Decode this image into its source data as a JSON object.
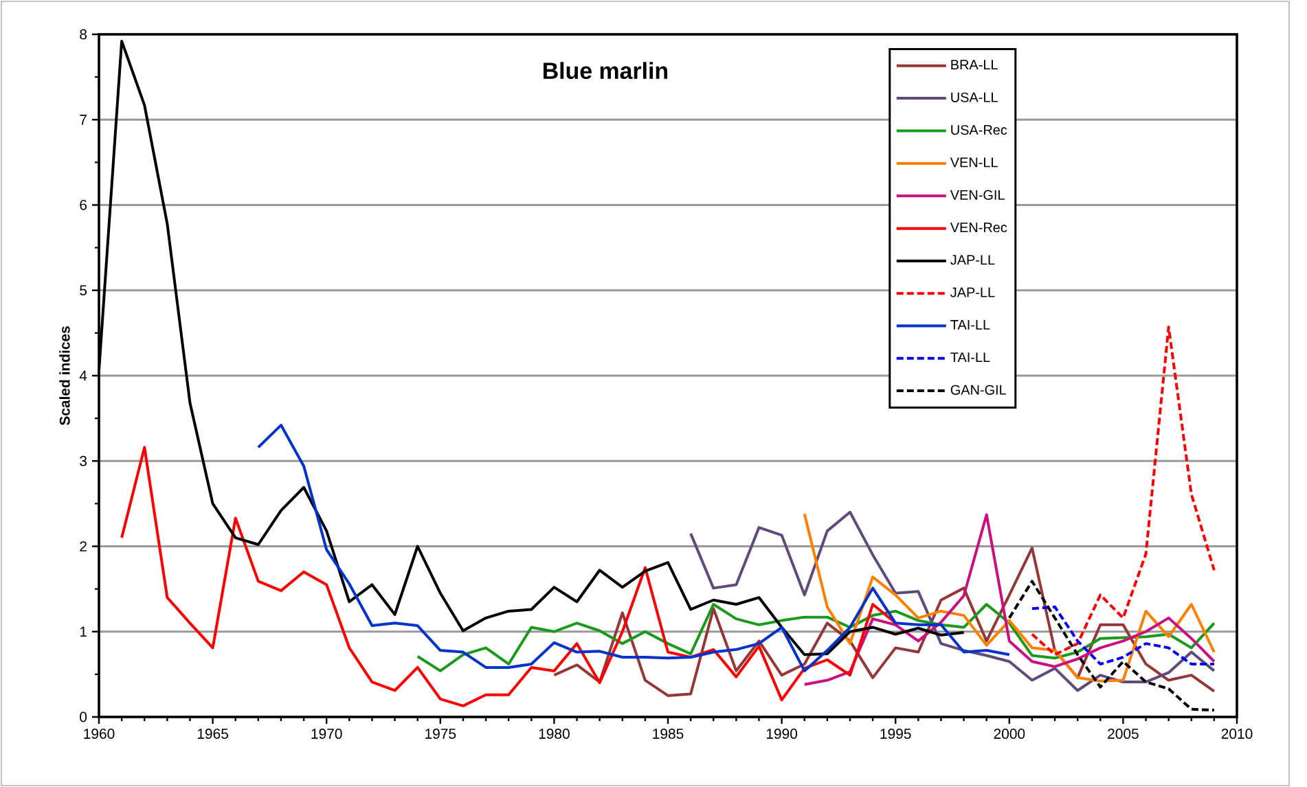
{
  "chart_data": {
    "type": "line",
    "title": "Blue marlin",
    "ylabel": "Scaled indices",
    "xlim": [
      1960,
      2010
    ],
    "ylim": [
      0,
      8
    ],
    "xticks": [
      1960,
      1965,
      1970,
      1975,
      1980,
      1985,
      1990,
      1995,
      2000,
      2005,
      2010
    ],
    "yticks": [
      0,
      1,
      2,
      3,
      4,
      5,
      6,
      7,
      8
    ],
    "grid": "y",
    "legend": "top right",
    "series": [
      {
        "name": "BRA-LL",
        "color": "#953735",
        "line_style": "solid",
        "x": [
          1980,
          1981,
          1982,
          1983,
          1984,
          1985,
          1986,
          1987,
          1988,
          1989,
          1990,
          1991,
          1992,
          1993,
          1994,
          1995,
          1996,
          1997,
          1998,
          1999,
          2000,
          2001,
          2002,
          2003,
          2004,
          2005,
          2006,
          2007,
          2008,
          2009
        ],
        "values": [
          0.49,
          0.61,
          0.41,
          1.22,
          0.43,
          0.25,
          0.27,
          1.27,
          0.54,
          0.89,
          0.49,
          0.62,
          1.1,
          0.89,
          0.46,
          0.81,
          0.76,
          1.37,
          1.51,
          0.89,
          1.43,
          1.98,
          0.78,
          0.46,
          1.08,
          1.08,
          0.62,
          0.43,
          0.49,
          0.3
        ]
      },
      {
        "name": "USA-LL",
        "color": "#604a7b",
        "line_style": "solid",
        "x": [
          1986,
          1987,
          1988,
          1989,
          1990,
          1991,
          1992,
          1993,
          1994,
          1995,
          1996,
          1997,
          1998,
          1999,
          2000,
          2001,
          2002,
          2003,
          2004,
          2005,
          2006,
          2007,
          2008,
          2009
        ],
        "values": [
          2.15,
          1.51,
          1.55,
          2.22,
          2.13,
          1.43,
          2.18,
          2.4,
          1.9,
          1.45,
          1.47,
          0.86,
          0.78,
          0.72,
          0.65,
          0.43,
          0.57,
          0.31,
          0.49,
          0.41,
          0.41,
          0.52,
          0.76,
          0.54
        ]
      },
      {
        "name": "USA-Rec",
        "color": "#1a9a1a",
        "line_style": "solid",
        "x": [
          1974,
          1975,
          1976,
          1977,
          1978,
          1979,
          1980,
          1981,
          1982,
          1983,
          1984,
          1985,
          1986,
          1987,
          1988,
          1989,
          1990,
          1991,
          1992,
          1993,
          1994,
          1995,
          1996,
          1997,
          1998,
          1999,
          2000,
          2001,
          2002,
          2003,
          2004,
          2005,
          2006,
          2007,
          2008,
          2009
        ],
        "values": [
          0.71,
          0.54,
          0.73,
          0.81,
          0.62,
          1.05,
          1.0,
          1.1,
          1.01,
          0.86,
          1.0,
          0.86,
          0.74,
          1.32,
          1.15,
          1.08,
          1.13,
          1.17,
          1.17,
          1.05,
          1.19,
          1.24,
          1.13,
          1.08,
          1.05,
          1.32,
          1.1,
          0.72,
          0.69,
          0.76,
          0.92,
          0.93,
          0.94,
          0.97,
          0.81,
          1.1
        ]
      },
      {
        "name": "VEN-LL",
        "color": "#ff7f00",
        "line_style": "solid",
        "x": [
          1991,
          1992,
          1993,
          1994,
          1995,
          1996,
          1997,
          1998,
          1999,
          2000,
          2001,
          2002,
          2003,
          2004,
          2005,
          2006,
          2007,
          2008,
          2009
        ],
        "values": [
          2.38,
          1.29,
          0.86,
          1.64,
          1.43,
          1.16,
          1.24,
          1.19,
          0.84,
          1.13,
          0.81,
          0.78,
          0.46,
          0.42,
          0.43,
          1.24,
          0.94,
          1.32,
          0.76
        ]
      },
      {
        "name": "VEN-GIL",
        "color": "#cc0f80",
        "line_style": "solid",
        "x": [
          1991,
          1992,
          1993,
          1994,
          1995,
          1996,
          1997,
          1998,
          1999,
          2000,
          2001,
          2002,
          2003,
          2004,
          2005,
          2006,
          2007,
          2008,
          2009
        ],
        "values": [
          0.38,
          0.43,
          0.53,
          1.15,
          1.08,
          0.89,
          1.11,
          1.42,
          2.37,
          0.89,
          0.65,
          0.59,
          0.68,
          0.81,
          0.89,
          1.0,
          1.16,
          0.92,
          0.65
        ]
      },
      {
        "name": "VEN-Rec",
        "color": "#ff0000",
        "line_style": "solid",
        "x": [
          1961,
          1962,
          1963,
          1964,
          1965,
          1966,
          1967,
          1968,
          1969,
          1970,
          1971,
          1972,
          1973,
          1974,
          1975,
          1976,
          1977,
          1978,
          1979,
          1980,
          1981,
          1982,
          1983,
          1984,
          1985,
          1986,
          1987,
          1988,
          1989,
          1990,
          1991,
          1992,
          1993,
          1994,
          1995
        ],
        "values": [
          2.1,
          3.16,
          1.4,
          1.1,
          0.81,
          2.33,
          1.59,
          1.48,
          1.7,
          1.55,
          0.81,
          0.41,
          0.31,
          0.58,
          0.21,
          0.13,
          0.26,
          0.26,
          0.58,
          0.54,
          0.86,
          0.4,
          1.0,
          1.75,
          0.76,
          0.7,
          0.79,
          0.47,
          0.83,
          0.2,
          0.57,
          0.67,
          0.49,
          1.32,
          1.1
        ]
      },
      {
        "name": "JAP-LL",
        "color": "#000000",
        "line_style": "solid",
        "x": [
          1960,
          1961,
          1962,
          1963,
          1964,
          1965,
          1966,
          1967,
          1968,
          1969,
          1970,
          1971,
          1972,
          1973,
          1974,
          1975,
          1976,
          1977,
          1978,
          1979,
          1980,
          1981,
          1982,
          1983,
          1984,
          1985,
          1986,
          1987,
          1988,
          1989,
          1990,
          1991,
          1992,
          1993,
          1994,
          1995,
          1996,
          1997,
          1998
        ],
        "values": [
          4.06,
          7.92,
          7.17,
          5.78,
          3.68,
          2.5,
          2.1,
          2.02,
          2.42,
          2.69,
          2.18,
          1.35,
          1.55,
          1.2,
          2.0,
          1.45,
          1.01,
          1.16,
          1.24,
          1.26,
          1.52,
          1.35,
          1.72,
          1.52,
          1.71,
          1.81,
          1.26,
          1.37,
          1.32,
          1.4,
          1.05,
          0.73,
          0.74,
          1.0,
          1.05,
          0.97,
          1.04,
          0.96,
          0.99
        ]
      },
      {
        "name": "JAP-LL",
        "color": "#ff0000",
        "line_style": "dashed",
        "x": [
          2001,
          2002,
          2003,
          2004,
          2005,
          2006,
          2007,
          2008,
          2009
        ],
        "values": [
          0.97,
          0.73,
          0.86,
          1.43,
          1.16,
          1.91,
          4.57,
          2.61,
          1.72
        ]
      },
      {
        "name": "TAI-LL",
        "color": "#0033cc",
        "line_style": "solid",
        "x": [
          1967,
          1968,
          1969,
          1970,
          1971,
          1972,
          1973,
          1974,
          1975,
          1976,
          1977,
          1978,
          1979,
          1980,
          1981,
          1982,
          1983,
          1984,
          1985,
          1986,
          1987,
          1988,
          1989,
          1990,
          1991,
          1992,
          1993,
          1994,
          1995,
          1996,
          1997,
          1998,
          1999,
          2000
        ],
        "values": [
          3.16,
          3.42,
          2.94,
          1.96,
          1.56,
          1.07,
          1.1,
          1.07,
          0.78,
          0.76,
          0.58,
          0.58,
          0.62,
          0.87,
          0.76,
          0.77,
          0.7,
          0.7,
          0.69,
          0.7,
          0.76,
          0.79,
          0.86,
          1.05,
          0.54,
          0.78,
          1.05,
          1.51,
          1.1,
          1.08,
          1.08,
          0.76,
          0.78,
          0.73
        ]
      },
      {
        "name": "TAI-LL",
        "color": "#0000ff",
        "line_style": "dashed",
        "x": [
          2001,
          2002,
          2003,
          2004,
          2005,
          2006,
          2007,
          2008,
          2009
        ],
        "values": [
          1.27,
          1.29,
          0.89,
          0.62,
          0.7,
          0.86,
          0.81,
          0.62,
          0.62
        ]
      },
      {
        "name": "GAN-GIL",
        "color": "#000000",
        "line_style": "dashed",
        "x": [
          2000,
          2001,
          2002,
          2003,
          2004,
          2005,
          2006,
          2007,
          2008,
          2009
        ],
        "values": [
          1.16,
          1.59,
          1.16,
          0.73,
          0.35,
          0.65,
          0.41,
          0.33,
          0.09,
          0.08
        ]
      }
    ]
  }
}
